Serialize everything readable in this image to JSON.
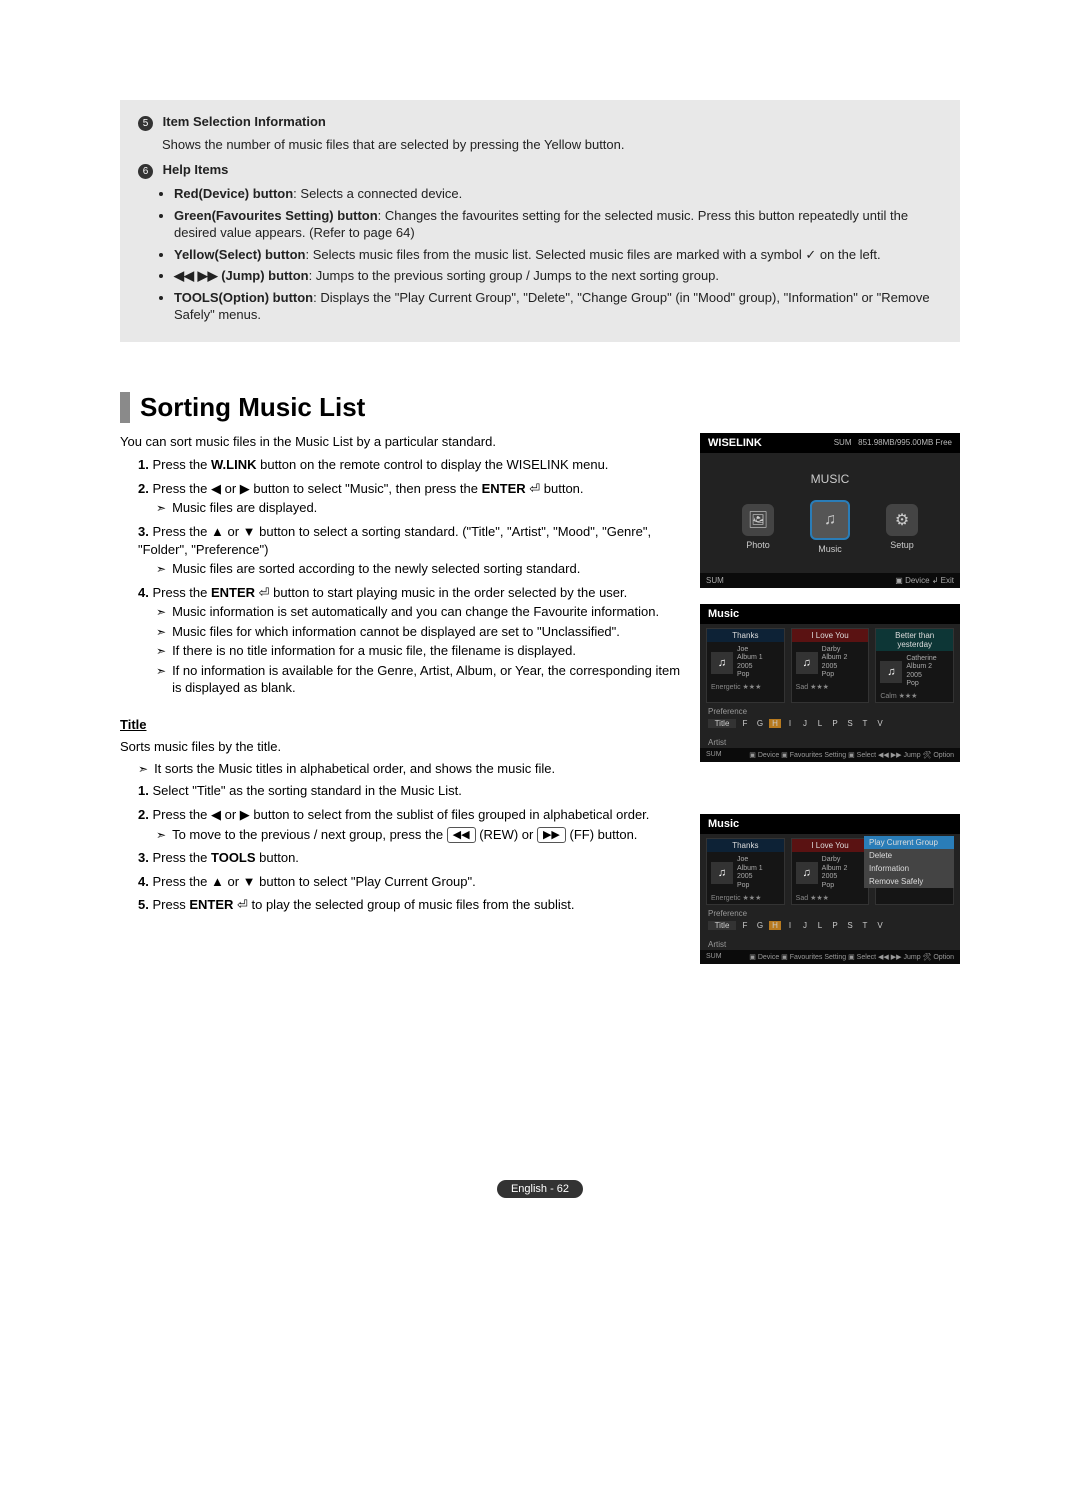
{
  "info": {
    "num5": "5",
    "heading5": "Item Selection Information",
    "desc5": "Shows the number of music files that are selected by pressing the Yellow button.",
    "num6": "6",
    "heading6": "Help Items",
    "bullets": [
      {
        "b": "Red(Device) button",
        "t": ": Selects a connected device."
      },
      {
        "b": "Green(Favourites Setting) button",
        "t": ": Changes the favourites setting for the selected music. Press this button repeatedly until the desired value appears. (Refer to page 64)"
      },
      {
        "b": "Yellow(Select) button",
        "t": ": Selects music files from the music list. Selected music files are marked with a symbol ✓ on the left."
      },
      {
        "b": "◀◀ ▶▶ (Jump) button",
        "t": ": Jumps to the previous sorting group / Jumps to the next sorting group."
      },
      {
        "b": "TOOLS(Option) button",
        "t": ": Displays the \"Play Current Group\", \"Delete\", \"Change Group\" (in \"Mood\" group), \"Information\" or \"Remove Safely\" menus."
      }
    ]
  },
  "section": {
    "title": "Sorting Music List",
    "intro": "You can sort music files in the Music List by a particular standard.",
    "steps": [
      {
        "n": "1.",
        "t": "Press the <b>W.LINK</b> button on the remote control to display the WISELINK menu."
      },
      {
        "n": "2.",
        "t": "Press the ◀ or ▶ button to select \"Music\", then press the <b>ENTER</b> ⏎ button.",
        "subs": [
          {
            "t": "Music files are displayed."
          }
        ]
      },
      {
        "n": "3.",
        "t": "Press the ▲ or ▼ button to select a sorting standard. (\"Title\", \"Artist\", \"Mood\", \"Genre\", \"Folder\", \"Preference\")",
        "subs": [
          {
            "t": "Music files are sorted according to the newly selected sorting standard."
          }
        ]
      },
      {
        "n": "4.",
        "t": "Press the <b>ENTER</b> ⏎ button to start playing music in the order selected by the user.",
        "subs": [
          {
            "t": "Music information is set automatically and you can change the Favourite information."
          },
          {
            "t": "Music files for which information cannot be displayed are set to \"Unclassified\"."
          },
          {
            "t": "If there is no title information for a music file, the filename is displayed."
          },
          {
            "t": "If no information is available for the Genre, Artist, Album, or Year, the corresponding item is displayed as blank."
          }
        ]
      }
    ]
  },
  "titleSection": {
    "heading": "Title",
    "intro": "Sorts music files by the title.",
    "sub1": "It sorts the Music titles in alphabetical order, and shows the music file.",
    "steps": [
      {
        "n": "1.",
        "t": "Select \"Title\" as the sorting standard in the Music List."
      },
      {
        "n": "2.",
        "t": "Press the ◀ or ▶ button to select from the sublist of files grouped in alphabetical order.",
        "subs": [
          {
            "html": "To move to the previous / next group, press the <span class='keybox'>◀◀</span> (REW) or <span class='keybox'>▶▶</span> (FF) button."
          }
        ]
      },
      {
        "n": "3.",
        "t": "Press the <b>TOOLS</b> button."
      },
      {
        "n": "4.",
        "t": "Press the ▲ or ▼ button to select \"Play Current Group\"."
      },
      {
        "n": "5.",
        "t": "Press <b>ENTER</b> ⏎ to play the selected group of music files from the sublist."
      }
    ]
  },
  "footer": "English - 62",
  "shot1": {
    "title": "WISELINK",
    "sum": "SUM",
    "free": "851.98MB/995.00MB Free",
    "label": "MUSIC",
    "photo": "Photo",
    "music": "Music",
    "setup": "Setup",
    "fL": "SUM",
    "fR": "▣ Device  ↲ Exit"
  },
  "shot2": {
    "title": "Music",
    "c1h": "Thanks",
    "c1n": "Joe",
    "c1m": "Album 1\n2005\nPop",
    "c1f": "Energetic    ★★★",
    "c2h": "I Love You",
    "c2n": "Darby",
    "c2m": "Album 2\n2005\nPop",
    "c2f": "Sad    ★★★",
    "c3h": "Better than yesterday",
    "c3n": "Catherine",
    "c3m": "Album 2\n2005\nPop",
    "c3f": "Calm    ★★★",
    "pref": "Preference",
    "alpha": [
      "Title",
      "F",
      "G",
      "H",
      "I",
      "J",
      "L",
      "P",
      "S",
      "T",
      "V"
    ],
    "artist": "Artist",
    "fL": "SUM",
    "fR": "▣ Device ▣ Favourites Setting ▣ Select ◀◀ ▶▶ Jump 🛠 Option"
  },
  "shot3": {
    "title": "Music",
    "ctx": [
      "Play Current Group",
      "Delete",
      "Information",
      "Remove Safely"
    ]
  }
}
